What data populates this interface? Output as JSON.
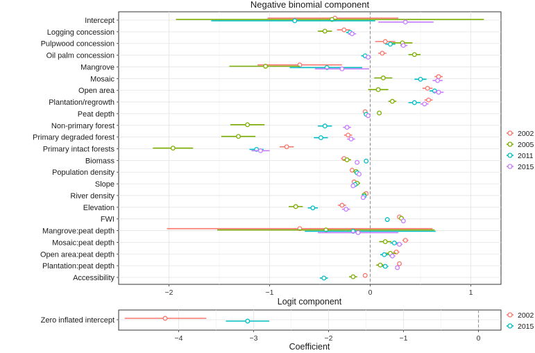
{
  "chart_data": [
    {
      "type": "forest",
      "title": "Negative binomial component",
      "xlabel": "Logit component",
      "xlim": [
        -2.5,
        1.3
      ],
      "xticks": [
        -2,
        -1,
        0,
        1
      ],
      "grid": true,
      "reference_line": 0,
      "legend_position": "right",
      "series": [
        {
          "name": "2002",
          "color": "#F8766D"
        },
        {
          "name": "2005",
          "color": "#7CAE00"
        },
        {
          "name": "2011",
          "color": "#00BFC4"
        },
        {
          "name": "2015",
          "color": "#C77CFF"
        }
      ],
      "rows": [
        {
          "label": "Intercept",
          "est": [
            -0.35,
            -0.38,
            -0.75,
            0.35
          ],
          "lo": [
            -1.02,
            -1.93,
            -1.58,
            0.08
          ],
          "hi": [
            0.28,
            1.13,
            0.05,
            0.63
          ]
        },
        {
          "label": "Logging concession",
          "est": [
            -0.26,
            -0.45,
            -0.2,
            -0.18
          ],
          "lo": [
            -0.33,
            -0.52,
            -0.24,
            -0.22
          ],
          "hi": [
            -0.2,
            -0.38,
            -0.16,
            -0.14
          ]
        },
        {
          "label": "Pulpwood concession",
          "est": [
            0.15,
            0.32,
            0.2,
            0.33
          ],
          "lo": [
            0.05,
            0.22,
            0.15,
            0.3
          ],
          "hi": [
            0.25,
            0.42,
            0.25,
            0.37
          ]
        },
        {
          "label": "Oil palm concession",
          "est": [
            0.12,
            0.44,
            -0.05,
            -0.02
          ],
          "lo": [
            0.08,
            0.38,
            -0.09,
            -0.05
          ],
          "hi": [
            0.16,
            0.5,
            -0.01,
            0.01
          ]
        },
        {
          "label": "Mangrove",
          "est": [
            -0.7,
            -1.04,
            -0.43,
            -0.28
          ],
          "lo": [
            -1.12,
            -1.4,
            -0.8,
            -0.55
          ],
          "hi": [
            -0.28,
            -0.7,
            -0.08,
            -0.01
          ]
        },
        {
          "label": "Mosaic",
          "est": [
            0.68,
            0.13,
            0.5,
            0.67
          ],
          "lo": [
            0.64,
            0.04,
            0.44,
            0.62
          ],
          "hi": [
            0.72,
            0.22,
            0.56,
            0.72
          ]
        },
        {
          "label": "Open area",
          "est": [
            0.57,
            0.08,
            0.64,
            0.68
          ],
          "lo": [
            0.52,
            -0.02,
            0.59,
            0.63
          ],
          "hi": [
            0.62,
            0.18,
            0.69,
            0.73
          ]
        },
        {
          "label": "Plantation/regrowth",
          "est": [
            0.58,
            0.22,
            0.44,
            0.54
          ],
          "lo": [
            0.54,
            0.18,
            0.38,
            0.5
          ],
          "hi": [
            0.62,
            0.26,
            0.5,
            0.58
          ]
        },
        {
          "label": "Peat depth",
          "est": [
            -0.05,
            0.09,
            -0.04,
            -0.02
          ],
          "lo": [
            -0.07,
            0.07,
            -0.06,
            -0.04
          ],
          "hi": [
            -0.03,
            0.11,
            -0.02,
            0.0
          ]
        },
        {
          "label": "Non-primary forest",
          "est": [
            null,
            -1.22,
            -0.45,
            -0.23
          ],
          "lo": [
            null,
            -1.39,
            -0.52,
            -0.27
          ],
          "hi": [
            null,
            -1.05,
            -0.38,
            -0.19
          ]
        },
        {
          "label": "Primary degraded forest",
          "est": [
            -0.22,
            -1.31,
            -0.49,
            -0.19
          ],
          "lo": [
            -0.26,
            -1.48,
            -0.56,
            -0.23
          ],
          "hi": [
            -0.18,
            -1.14,
            -0.42,
            -0.15
          ]
        },
        {
          "label": "Primary intact forests",
          "est": [
            -0.83,
            -1.96,
            -1.13,
            -1.09
          ],
          "lo": [
            -0.9,
            -2.16,
            -1.2,
            -1.18
          ],
          "hi": [
            -0.76,
            -1.76,
            -1.06,
            -1.0
          ]
        },
        {
          "label": "Biomass",
          "est": [
            -0.26,
            -0.23,
            -0.04,
            -0.13
          ],
          "lo": [
            -0.29,
            -0.27,
            -0.06,
            -0.15
          ],
          "hi": [
            -0.23,
            -0.19,
            -0.02,
            -0.11
          ]
        },
        {
          "label": "Population density",
          "est": [
            -0.18,
            -0.14,
            -0.13,
            -0.11
          ],
          "lo": [
            -0.2,
            -0.17,
            -0.15,
            -0.13
          ],
          "hi": [
            -0.16,
            -0.11,
            -0.11,
            -0.09
          ]
        },
        {
          "label": "Slope",
          "est": [
            -0.16,
            -0.13,
            -0.15,
            -0.17
          ],
          "lo": [
            -0.18,
            -0.16,
            -0.17,
            -0.19
          ],
          "hi": [
            -0.14,
            -0.1,
            -0.13,
            -0.15
          ]
        },
        {
          "label": "River density",
          "est": [
            -0.04,
            -0.06,
            -0.06,
            -0.07
          ],
          "lo": [
            -0.05,
            -0.07,
            -0.07,
            -0.08
          ],
          "hi": [
            -0.03,
            -0.05,
            -0.05,
            -0.06
          ]
        },
        {
          "label": "Elevation",
          "est": [
            -0.28,
            -0.74,
            -0.57,
            -0.24
          ],
          "lo": [
            -0.32,
            -0.81,
            -0.62,
            -0.28
          ],
          "hi": [
            -0.24,
            -0.67,
            -0.52,
            -0.2
          ]
        },
        {
          "label": "FWI",
          "est": [
            0.29,
            0.31,
            0.17,
            0.33
          ],
          "lo": [
            0.27,
            0.29,
            0.15,
            0.31
          ],
          "hi": [
            0.31,
            0.33,
            0.19,
            0.35
          ]
        },
        {
          "label": "Mangrove:peat depth",
          "est": [
            -0.7,
            -0.44,
            -0.17,
            -0.12
          ],
          "lo": [
            -2.02,
            -1.52,
            -0.65,
            -0.52
          ],
          "hi": [
            0.62,
            0.64,
            0.65,
            0.28
          ]
        },
        {
          "label": "Mosaic:peat depth",
          "est": [
            0.35,
            0.15,
            0.24,
            0.29
          ],
          "lo": [
            0.32,
            0.09,
            0.2,
            0.26
          ],
          "hi": [
            0.38,
            0.21,
            0.28,
            0.32
          ]
        },
        {
          "label": "Open area:peat depth",
          "est": [
            0.26,
            0.2,
            0.14,
            0.22
          ],
          "lo": [
            0.23,
            0.14,
            0.1,
            0.19
          ],
          "hi": [
            0.29,
            0.26,
            0.18,
            0.25
          ]
        },
        {
          "label": "Plantation:peat depth",
          "est": [
            0.29,
            0.1,
            0.15,
            0.27
          ],
          "lo": [
            0.27,
            0.06,
            0.12,
            0.25
          ],
          "hi": [
            0.31,
            0.14,
            0.18,
            0.29
          ]
        },
        {
          "label": "Accessibility",
          "est": [
            -0.05,
            -0.17,
            -0.46,
            null
          ],
          "lo": [
            -0.07,
            -0.21,
            -0.5,
            null
          ],
          "hi": [
            -0.03,
            -0.13,
            -0.42,
            null
          ]
        }
      ]
    },
    {
      "type": "forest",
      "title": "",
      "xlabel": "Coefficient",
      "xlim": [
        -4.8,
        0.3
      ],
      "xticks": [
        -4,
        -3,
        -2,
        -1,
        0
      ],
      "grid": true,
      "reference_line": 0,
      "legend_position": "right",
      "series": [
        {
          "name": "2002",
          "color": "#F8766D"
        },
        {
          "name": "2015",
          "color": "#00BFC4"
        }
      ],
      "rows": [
        {
          "label": "Zero inflated intercept",
          "est": [
            -4.18,
            -3.08
          ],
          "lo": [
            -4.72,
            -3.37
          ],
          "hi": [
            -3.63,
            -2.79
          ]
        }
      ]
    }
  ]
}
